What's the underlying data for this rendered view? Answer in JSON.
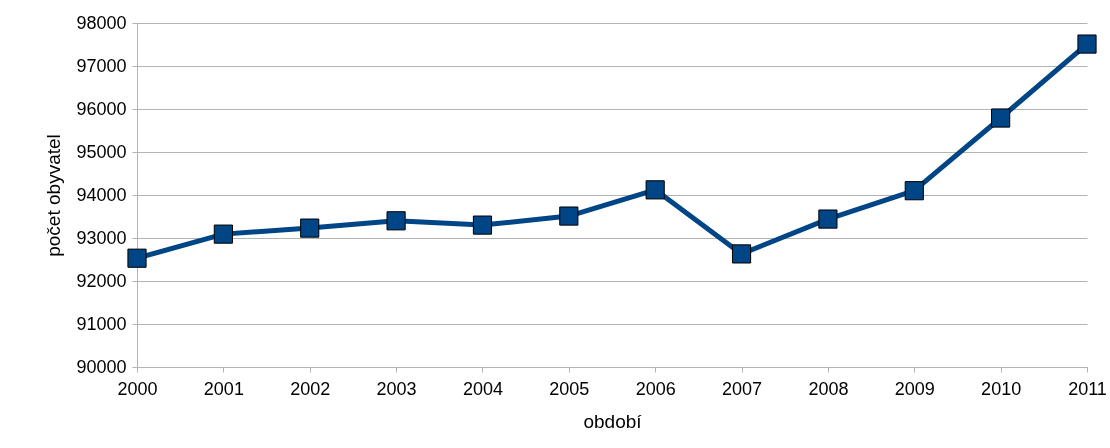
{
  "chart_data": {
    "type": "line",
    "xlabel": "období",
    "ylabel": "počet obyvatel",
    "categories": [
      "2000",
      "2001",
      "2002",
      "2003",
      "2004",
      "2005",
      "2006",
      "2007",
      "2008",
      "2009",
      "2010",
      "2011"
    ],
    "series": [
      {
        "color": "#004586",
        "values": [
          92530,
          93090,
          93230,
          93400,
          93300,
          93510,
          94120,
          92630,
          93440,
          94100,
          95790,
          97510
        ]
      }
    ],
    "ylim": [
      90000,
      98000
    ],
    "yticks": [
      90000,
      91000,
      92000,
      93000,
      94000,
      95000,
      96000,
      97000,
      98000
    ],
    "grid": "y",
    "marker": "square",
    "line_style": "solid",
    "legend": false
  }
}
